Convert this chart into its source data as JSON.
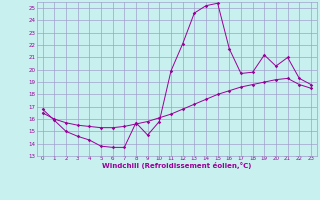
{
  "xlabel": "Windchill (Refroidissement éolien,°C)",
  "xlim": [
    -0.5,
    23.5
  ],
  "ylim": [
    13,
    25.5
  ],
  "yticks": [
    13,
    14,
    15,
    16,
    17,
    18,
    19,
    20,
    21,
    22,
    23,
    24,
    25
  ],
  "xticks": [
    0,
    1,
    2,
    3,
    4,
    5,
    6,
    7,
    8,
    9,
    10,
    11,
    12,
    13,
    14,
    15,
    16,
    17,
    18,
    19,
    20,
    21,
    22,
    23
  ],
  "bg_color": "#c8f0ee",
  "grid_color": "#a0a0cc",
  "line_color": "#990099",
  "line1_x": [
    0,
    1,
    2,
    3,
    4,
    5,
    6,
    7,
    8,
    9,
    10,
    11,
    12,
    13,
    14,
    15,
    16,
    17,
    18,
    19,
    20,
    21,
    22,
    23
  ],
  "line1_y": [
    16.8,
    15.9,
    15.0,
    14.6,
    14.3,
    13.8,
    13.7,
    13.7,
    15.7,
    14.7,
    15.8,
    19.9,
    22.1,
    24.6,
    25.2,
    25.4,
    21.7,
    19.7,
    19.8,
    21.2,
    20.3,
    21.0,
    19.3,
    18.8
  ],
  "line2_x": [
    0,
    1,
    2,
    3,
    4,
    5,
    6,
    7,
    8,
    9,
    10,
    11,
    12,
    13,
    14,
    15,
    16,
    17,
    18,
    19,
    20,
    21,
    22,
    23
  ],
  "line2_y": [
    16.5,
    16.0,
    15.7,
    15.5,
    15.4,
    15.3,
    15.3,
    15.4,
    15.6,
    15.8,
    16.1,
    16.4,
    16.8,
    17.2,
    17.6,
    18.0,
    18.3,
    18.6,
    18.8,
    19.0,
    19.2,
    19.3,
    18.8,
    18.5
  ]
}
